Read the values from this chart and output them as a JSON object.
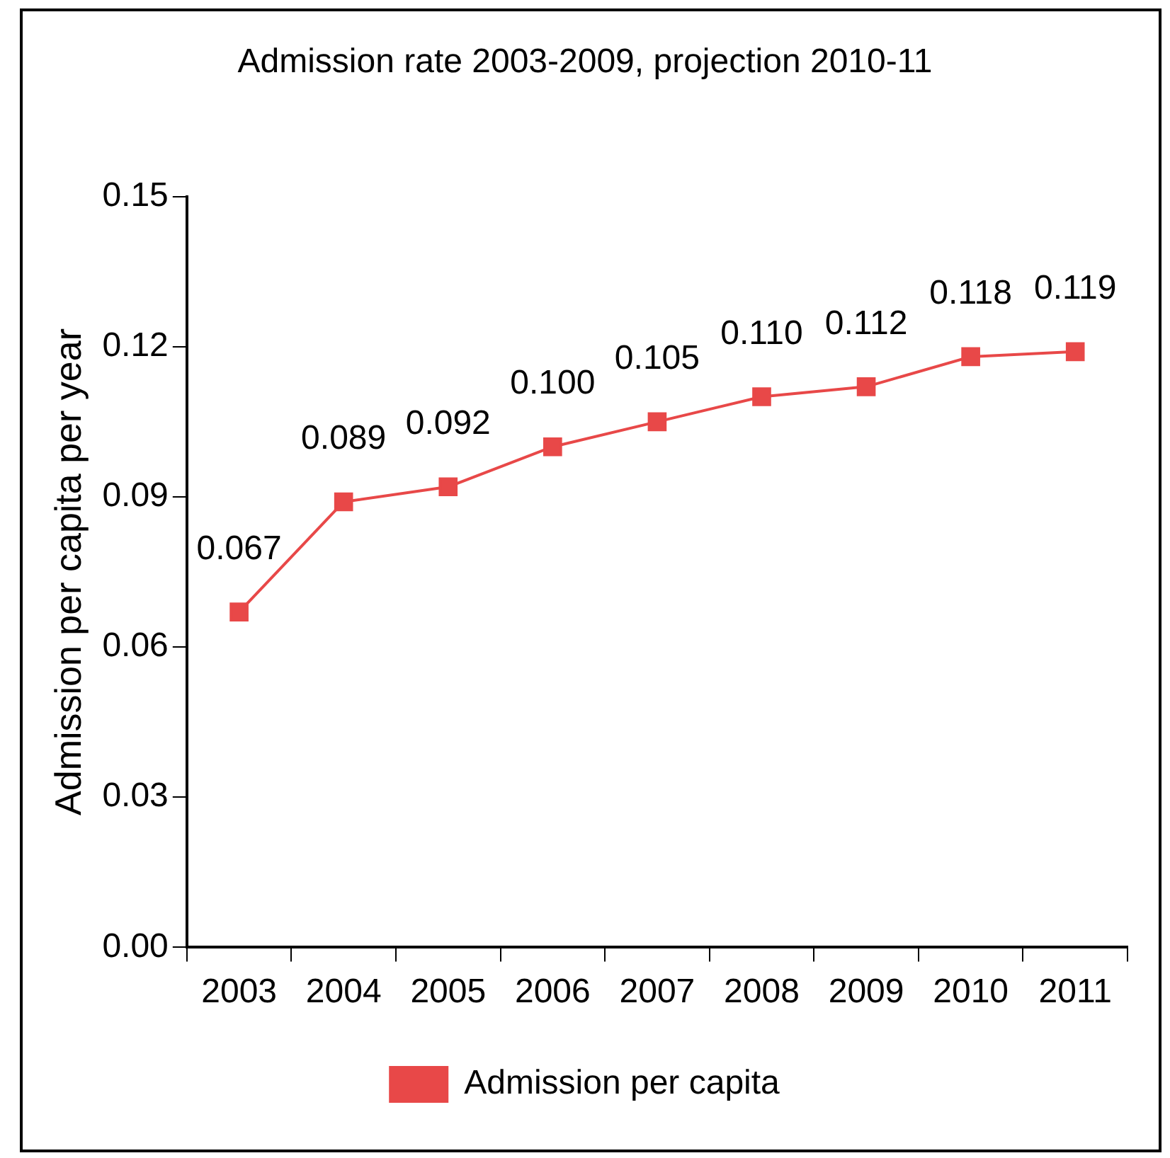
{
  "chart_data": {
    "type": "line",
    "title": "Admission rate 2003-2009, projection 2010-11",
    "ylabel": "Admission per capita per year",
    "categories": [
      "2003",
      "2004",
      "2005",
      "2006",
      "2007",
      "2008",
      "2009",
      "2010",
      "2011"
    ],
    "series": [
      {
        "name": "Admission per capita",
        "color": "#e84848",
        "values": [
          0.067,
          0.089,
          0.092,
          0.1,
          0.105,
          0.11,
          0.112,
          0.118,
          0.119
        ],
        "value_labels": [
          "0.067",
          "0.089",
          "0.092",
          "0.100",
          "0.105",
          "0.110",
          "0.112",
          "0.118",
          "0.119"
        ]
      }
    ],
    "ylim": [
      0,
      0.15
    ],
    "yticks": [
      {
        "value": 0,
        "label": "0.00"
      },
      0.03,
      0.06,
      0.09,
      0.12,
      0.15
    ],
    "grid": false,
    "legend": "bottom",
    "marker": "square",
    "line_style": "solid"
  }
}
